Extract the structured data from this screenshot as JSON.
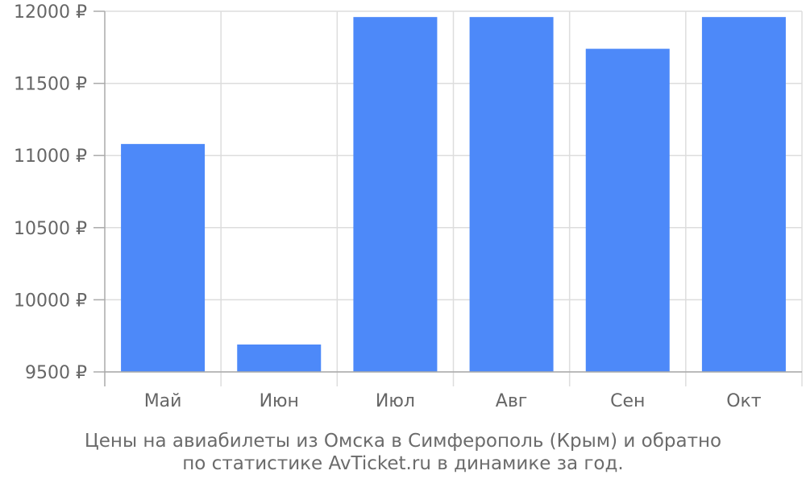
{
  "chart_data": {
    "type": "bar",
    "categories": [
      "Май",
      "Июн",
      "Июл",
      "Авг",
      "Сен",
      "Окт"
    ],
    "values": [
      11080,
      9690,
      11960,
      11960,
      11740,
      11960
    ],
    "ylim": [
      9500,
      12000
    ],
    "yticks": [
      9500,
      10000,
      10500,
      11000,
      11500,
      12000
    ],
    "ytick_labels": [
      "9500 ₽",
      "10000 ₽",
      "10500 ₽",
      "11000 ₽",
      "11500 ₽",
      "12000 ₽"
    ],
    "grid": true,
    "legend": "none",
    "bar_color": "#4d89f9",
    "caption_lines": [
      "Цены на авиабилеты из Омска в Симферополь (Крым) и обратно",
      "по статистике AvTicket.ru в динамике за год."
    ]
  }
}
